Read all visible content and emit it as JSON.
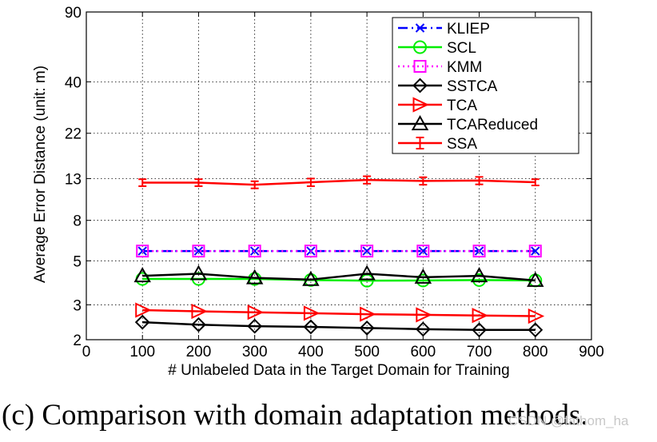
{
  "chart_data": {
    "type": "line",
    "xlabel": "# Unlabeled Data in the Target Domain for Training",
    "ylabel": "Average Error Distance (unit: m)",
    "yscale": "log",
    "xlim": [
      0,
      900
    ],
    "ylim": [
      2,
      90
    ],
    "xticks": [
      0,
      100,
      200,
      300,
      400,
      500,
      600,
      700,
      800,
      900
    ],
    "yticks": [
      2,
      3,
      5,
      8,
      13,
      22,
      40,
      90
    ],
    "grid": "dotted",
    "legend_position": "top-right",
    "x": [
      100,
      200,
      300,
      400,
      500,
      600,
      700,
      800
    ],
    "series": [
      {
        "name": "KLIEP",
        "color": "#0000ff",
        "linestyle": "dashdot",
        "marker": "x",
        "values": [
          5.6,
          5.6,
          5.6,
          5.6,
          5.6,
          5.6,
          5.6,
          5.6
        ]
      },
      {
        "name": "SCL",
        "color": "#00ee00",
        "linestyle": "solid",
        "marker": "circle",
        "values": [
          4.05,
          4.05,
          4.05,
          4.0,
          3.97,
          3.98,
          4.0,
          3.98
        ]
      },
      {
        "name": "KMM",
        "color": "#ff00ff",
        "linestyle": "dotted",
        "marker": "square",
        "values": [
          5.6,
          5.6,
          5.6,
          5.6,
          5.6,
          5.6,
          5.6,
          5.6
        ]
      },
      {
        "name": "SSTCA",
        "color": "#000000",
        "linestyle": "solid",
        "marker": "diamond",
        "values": [
          2.45,
          2.38,
          2.34,
          2.32,
          2.29,
          2.26,
          2.24,
          2.24
        ]
      },
      {
        "name": "TCA",
        "color": "#ff0000",
        "linestyle": "solid",
        "marker": "triangle-right",
        "values": [
          2.82,
          2.78,
          2.75,
          2.72,
          2.69,
          2.67,
          2.65,
          2.63
        ]
      },
      {
        "name": "TCAReduced",
        "color": "#000000",
        "linestyle": "solid",
        "marker": "triangle-up",
        "values": [
          4.2,
          4.3,
          4.1,
          4.02,
          4.3,
          4.13,
          4.2,
          3.98
        ]
      },
      {
        "name": "SSA",
        "color": "#ff0000",
        "linestyle": "solid",
        "marker": "errorbar",
        "values": [
          12.4,
          12.4,
          12.1,
          12.45,
          12.8,
          12.65,
          12.7,
          12.45
        ],
        "error": [
          0.5,
          0.5,
          0.5,
          0.55,
          0.55,
          0.55,
          0.55,
          0.45
        ]
      }
    ]
  },
  "caption": "(c) Comparison with domain adaptation methods.",
  "watermark": "CSDN @fathom_ha"
}
